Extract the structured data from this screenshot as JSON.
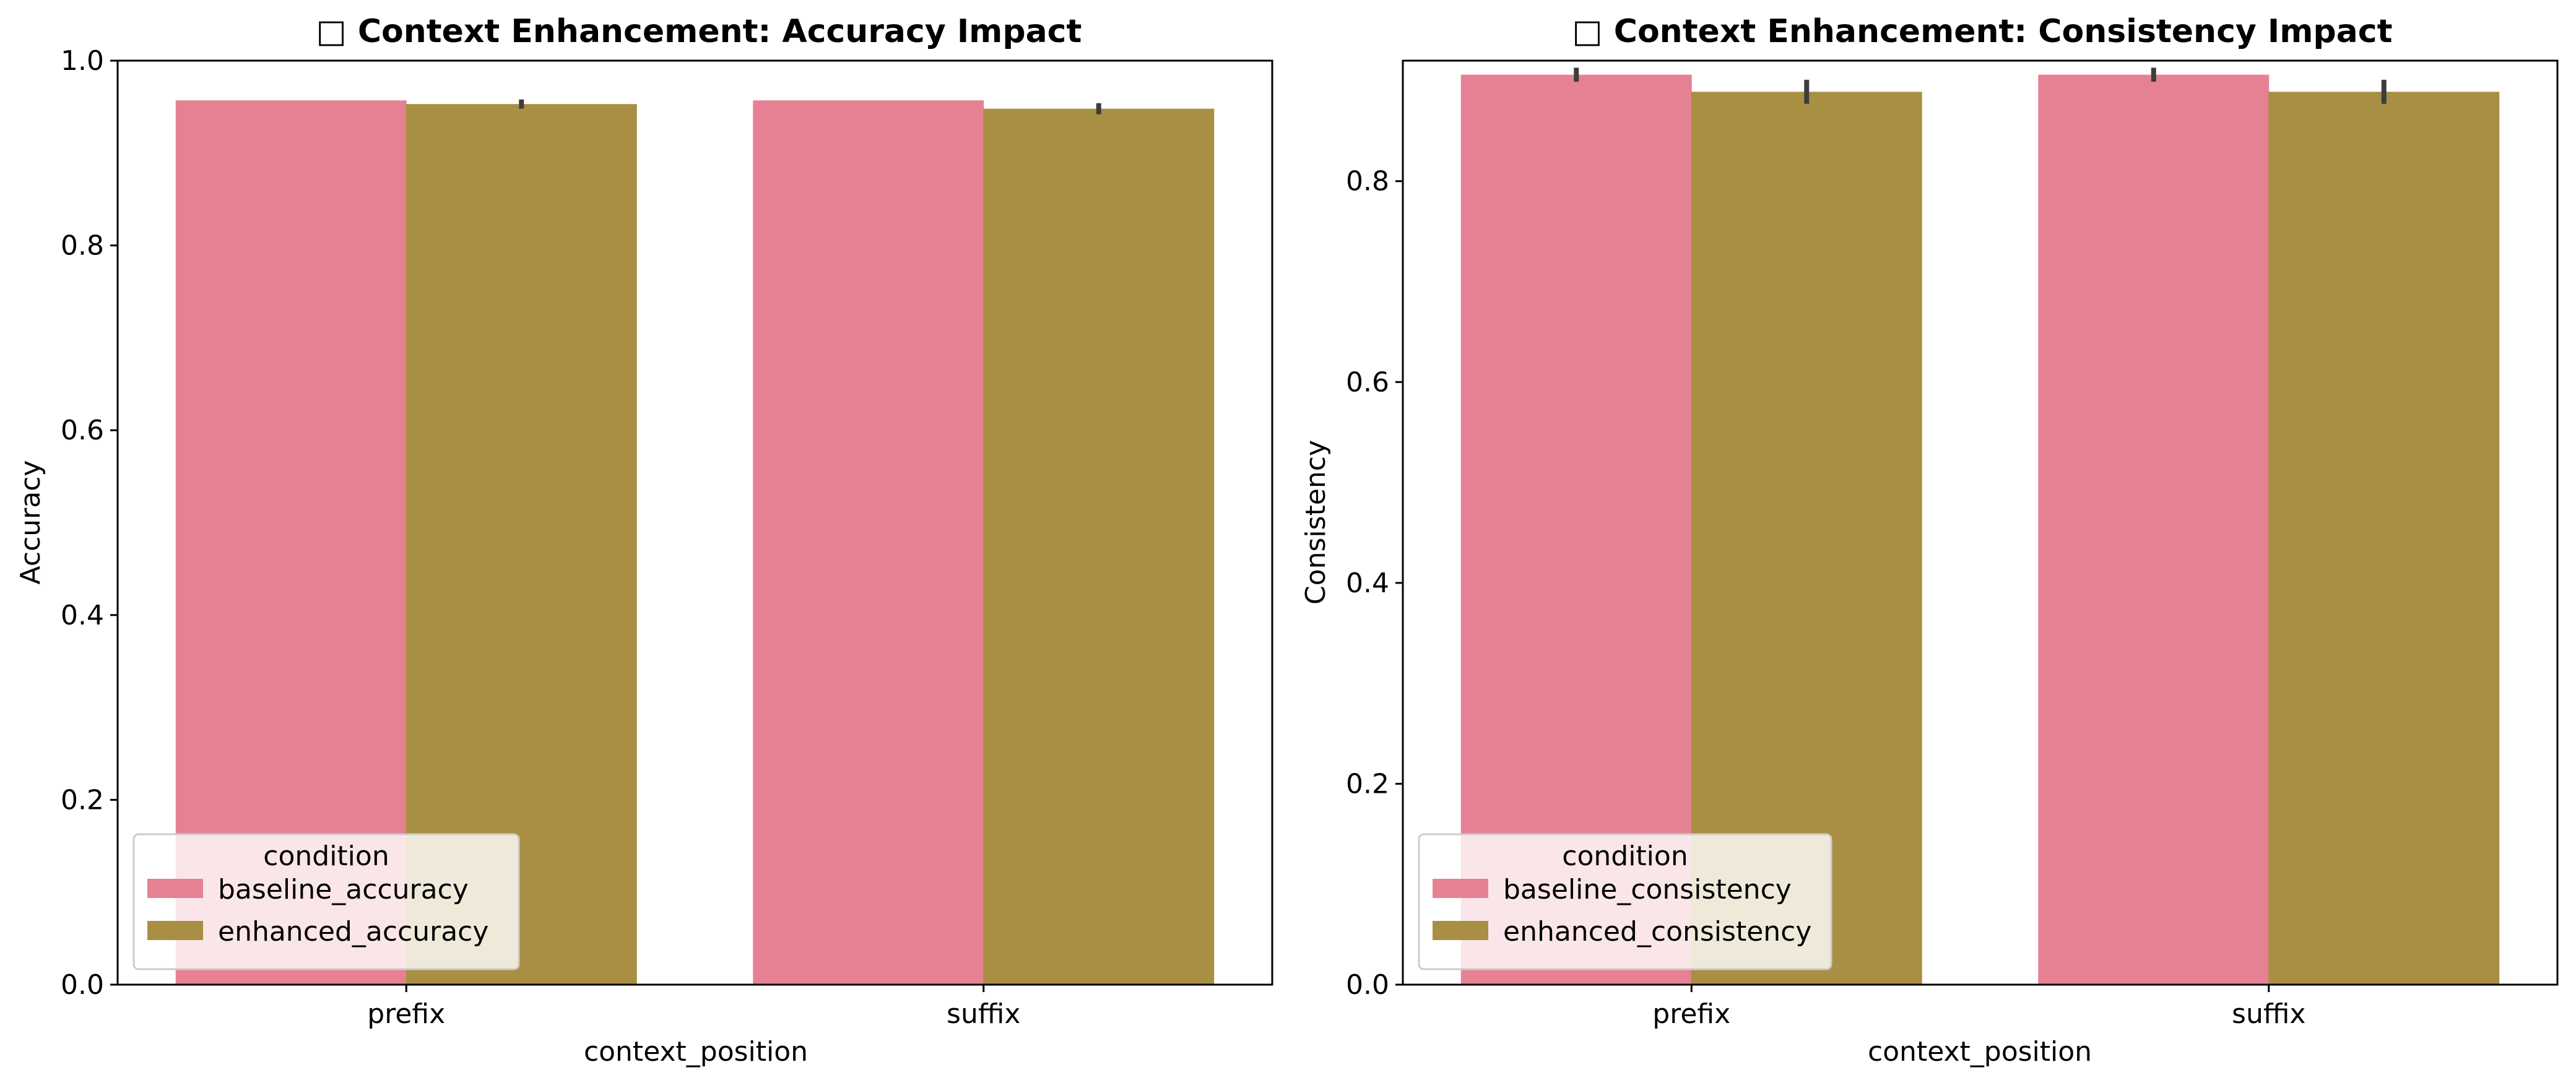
{
  "chart_data": [
    {
      "type": "bar",
      "title": "□ Context Enhancement: Accuracy Impact",
      "xlabel": "context_position",
      "ylabel": "Accuracy",
      "categories": [
        "prefix",
        "suffix"
      ],
      "ylim": [
        0,
        1.0
      ],
      "yticks": [
        "0.0",
        "0.2",
        "0.4",
        "0.6",
        "0.8",
        "1.0"
      ],
      "series": [
        {
          "name": "baseline_accuracy",
          "color": "#e68193",
          "values": [
            0.957,
            0.957
          ],
          "err": [
            0,
            0
          ]
        },
        {
          "name": "enhanced_accuracy",
          "color": "#a98f43",
          "values": [
            0.953,
            0.948
          ],
          "err": [
            0.005,
            0.006
          ]
        }
      ],
      "legend": {
        "title": "condition",
        "placement": "lower-left"
      },
      "grid": false
    },
    {
      "type": "bar",
      "title": "□ Context Enhancement: Consistency Impact",
      "xlabel": "context_position",
      "ylabel": "Consistency",
      "categories": [
        "prefix",
        "suffix"
      ],
      "ylim": [
        0,
        0.92
      ],
      "yticks": [
        "0.0",
        "0.2",
        "0.4",
        "0.6",
        "0.8"
      ],
      "series": [
        {
          "name": "baseline_consistency",
          "color": "#e68193",
          "values": [
            0.906,
            0.906
          ],
          "err": [
            0.007,
            0.007
          ]
        },
        {
          "name": "enhanced_consistency",
          "color": "#a98f43",
          "values": [
            0.889,
            0.889
          ],
          "err": [
            0.012,
            0.012
          ]
        }
      ],
      "legend": {
        "title": "condition",
        "placement": "lower-left"
      },
      "grid": false
    }
  ]
}
